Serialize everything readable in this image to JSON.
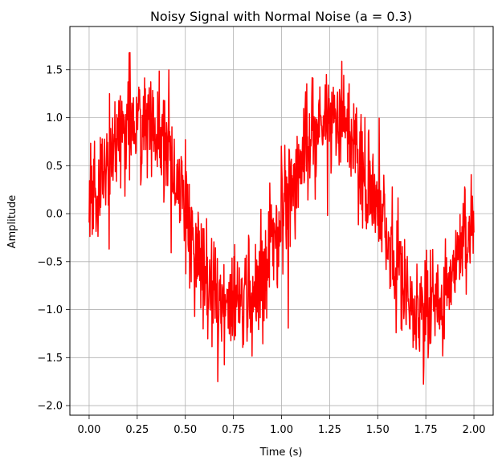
{
  "chart_data": {
    "type": "line",
    "title": "Noisy Signal with Normal Noise (a = 0.3)",
    "xlabel": "Time (s)",
    "ylabel": "Amplitude",
    "xlim": [
      -0.1,
      2.1
    ],
    "ylim": [
      -2.1,
      1.95
    ],
    "x_ticks": [
      0.0,
      0.25,
      0.5,
      0.75,
      1.0,
      1.25,
      1.5,
      1.75,
      2.0
    ],
    "x_tick_labels": [
      "0.00",
      "0.25",
      "0.50",
      "0.75",
      "1.00",
      "1.25",
      "1.50",
      "1.75",
      "2.00"
    ],
    "y_ticks": [
      -2.0,
      -1.5,
      -1.0,
      -0.5,
      0.0,
      0.5,
      1.0,
      1.5
    ],
    "y_tick_labels": [
      "−2.0",
      "−1.5",
      "−1.0",
      "−0.5",
      "0.0",
      "0.5",
      "1.0",
      "1.5"
    ],
    "grid": true,
    "series": [
      {
        "color": "#ff0000",
        "signal": "sine",
        "frequency_hz": 1,
        "amplitude": 1.0,
        "noise": "normal",
        "noise_scale": 0.3,
        "x_range": [
          0,
          2
        ],
        "num_points": 1000,
        "observed_max": 1.78,
        "observed_min": -1.95
      }
    ]
  }
}
